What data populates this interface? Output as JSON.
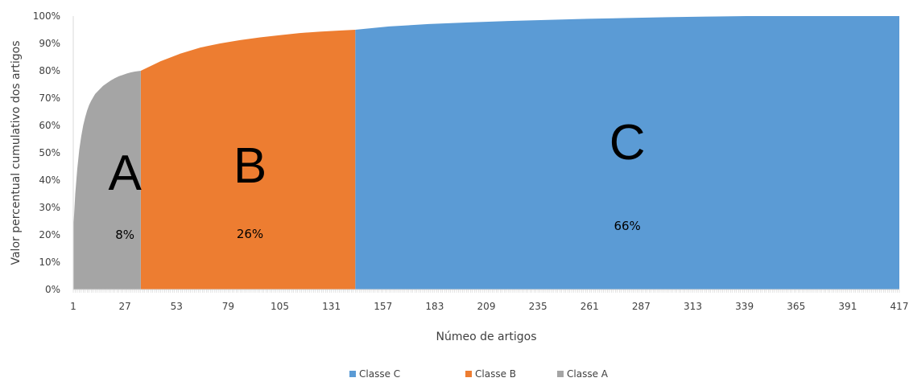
{
  "chart_data": {
    "type": "area",
    "title": "",
    "xlabel": "Númeo de artigos",
    "ylabel": "Valor percentual cumulativo dos artigos",
    "xlim": [
      1,
      417
    ],
    "ylim": [
      0,
      100
    ],
    "x_ticks": [
      "1",
      "27",
      "53",
      "79",
      "105",
      "131",
      "157",
      "183",
      "209",
      "235",
      "261",
      "287",
      "313",
      "339",
      "365",
      "391",
      "417"
    ],
    "y_ticks": [
      "0%",
      "10%",
      "20%",
      "30%",
      "40%",
      "50%",
      "60%",
      "70%",
      "80%",
      "90%",
      "100%"
    ],
    "grid": false,
    "legend_position": "bottom",
    "series": [
      {
        "name": "Classe C",
        "color": "#5b9bd5",
        "x": [
          143,
          160,
          180,
          200,
          220,
          240,
          260,
          280,
          300,
          320,
          340,
          417
        ],
        "y": [
          95,
          96.2,
          97.1,
          97.7,
          98.2,
          98.6,
          99.0,
          99.3,
          99.6,
          99.8,
          100,
          100
        ]
      },
      {
        "name": "Classe B",
        "color": "#ed7d31",
        "x": [
          35,
          45,
          55,
          65,
          75,
          85,
          95,
          105,
          115,
          125,
          135,
          143
        ],
        "y": [
          80,
          83.5,
          86.3,
          88.5,
          90,
          91.2,
          92.2,
          93,
          93.8,
          94.3,
          94.7,
          95
        ]
      },
      {
        "name": "Classe A",
        "color": "#a5a5a5",
        "x": [
          1,
          2,
          3,
          4,
          5,
          6,
          7,
          8,
          9,
          10,
          12,
          14,
          16,
          18,
          20,
          22,
          24,
          26,
          28,
          30,
          32,
          35
        ],
        "y": [
          22,
          35,
          44,
          51,
          56,
          60,
          63,
          65.5,
          67.5,
          69,
          71.5,
          73,
          74.5,
          75.5,
          76.5,
          77.3,
          78,
          78.5,
          79,
          79.4,
          79.7,
          80
        ]
      }
    ],
    "annotations": [
      {
        "label": "A",
        "percent": "8%"
      },
      {
        "label": "B",
        "percent": "26%"
      },
      {
        "label": "C",
        "percent": "66%"
      }
    ]
  }
}
